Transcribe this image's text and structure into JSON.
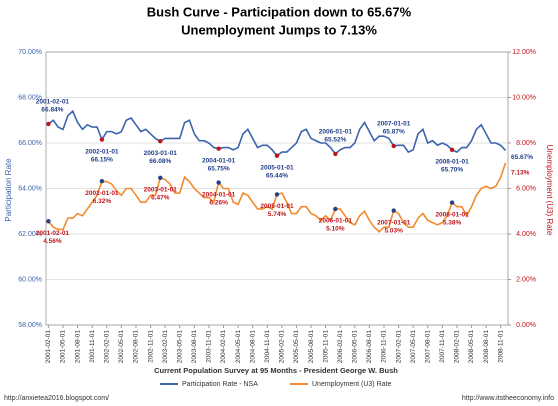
{
  "chart_data": {
    "type": "line",
    "title": "Bush Curve - Participation down to 65.67%",
    "subtitle": "Unemployment Jumps to 7.13%",
    "x_label": "Current Population Survey at 95 Months - President George W. Bush",
    "y_label": "Participation Rate",
    "y2_label": "Unemployment (U3) Rate",
    "footer_left": "http://anxietea2016.blogspot.com/",
    "footer_right": "http://www.itstheeconomy.info",
    "grid": true,
    "legend": "bottom",
    "categories": [
      "2001-02-01",
      null,
      null,
      "2001-05-01",
      null,
      null,
      "2001-08-01",
      null,
      null,
      "2001-11-01",
      null,
      null,
      "2002-02-01",
      null,
      null,
      "2002-05-01",
      null,
      null,
      "2002-08-01",
      null,
      null,
      "2002-11-01",
      null,
      null,
      "2003-02-01",
      null,
      null,
      "2003-05-01",
      null,
      null,
      "2003-08-01",
      null,
      null,
      "2003-11-01",
      null,
      null,
      "2004-02-01",
      null,
      null,
      "2004-05-01",
      null,
      null,
      "2004-08-01",
      null,
      null,
      "2004-11-01",
      null,
      null,
      "2005-02-01",
      null,
      null,
      "2005-05-01",
      null,
      null,
      "2005-08-01",
      null,
      null,
      "2005-11-01",
      null,
      null,
      "2006-02-01",
      null,
      null,
      "2006-05-01",
      null,
      null,
      "2006-08-01",
      null,
      null,
      "2006-11-01",
      null,
      null,
      "2007-02-01",
      null,
      null,
      "2007-05-01",
      null,
      null,
      "2007-08-01",
      null,
      null,
      "2007-11-01",
      null,
      null,
      "2008-02-01",
      null,
      null,
      "2008-05-01",
      null,
      null,
      "2008-08-01",
      null,
      null,
      "2008-11-01",
      null
    ],
    "ylim": [
      58,
      70
    ],
    "yticks": [
      {
        "value": 58,
        "label": "58.00%"
      },
      {
        "value": 60,
        "label": "60.00%"
      },
      {
        "value": 62,
        "label": "62.00%"
      },
      {
        "value": 64,
        "label": "64.00%"
      },
      {
        "value": 66,
        "label": "66.00%"
      },
      {
        "value": 68,
        "label": "68.00%"
      },
      {
        "value": 70,
        "label": "70.00%"
      }
    ],
    "y2lim": [
      0,
      12
    ],
    "y2ticks": [
      {
        "value": 0,
        "label": "0.00%"
      },
      {
        "value": 2,
        "label": "2.00%"
      },
      {
        "value": 4,
        "label": "4.00%"
      },
      {
        "value": 6,
        "label": "6.00%"
      },
      {
        "value": 8,
        "label": "8.00%"
      },
      {
        "value": 10,
        "label": "10.00%"
      },
      {
        "value": 12,
        "label": "12.00%"
      }
    ],
    "series": [
      {
        "name": "Participation Rate - NSA",
        "color": "#3c64ad",
        "marker_color": "#c0141c",
        "values": [
          66.84,
          67.0,
          66.7,
          66.6,
          67.2,
          67.4,
          66.9,
          66.6,
          66.8,
          66.7,
          66.7,
          66.15,
          66.5,
          66.5,
          66.4,
          66.5,
          67.0,
          67.1,
          66.8,
          66.5,
          66.6,
          66.4,
          66.2,
          66.08,
          66.2,
          66.2,
          66.2,
          66.2,
          66.9,
          67.0,
          66.4,
          66.1,
          66.1,
          66.0,
          65.8,
          65.75,
          65.8,
          65.8,
          65.7,
          65.8,
          66.4,
          66.6,
          66.2,
          65.8,
          65.9,
          65.9,
          65.7,
          65.44,
          65.6,
          65.6,
          65.8,
          66.0,
          66.5,
          66.6,
          66.2,
          66.1,
          66.0,
          66.0,
          65.8,
          65.52,
          65.7,
          65.8,
          65.8,
          66.0,
          66.6,
          66.9,
          66.5,
          66.1,
          66.3,
          66.3,
          66.2,
          65.87,
          65.9,
          65.9,
          65.6,
          65.7,
          66.4,
          66.6,
          66.0,
          66.1,
          65.9,
          66.0,
          65.9,
          65.7,
          65.6,
          65.8,
          65.8,
          66.1,
          66.6,
          66.8,
          66.4,
          66.0,
          66.0,
          65.9,
          65.67
        ],
        "annotations": [
          {
            "date": "2001-02-01",
            "label": "66.84%"
          },
          {
            "date": "2002-01-01",
            "label": "66.15%"
          },
          {
            "date": "2003-01-01",
            "label": "66.08%"
          },
          {
            "date": "2004-01-01",
            "label": "65.75%"
          },
          {
            "date": "2005-01-01",
            "label": "65.44%"
          },
          {
            "date": "2006-01-01",
            "label": "65.52%"
          },
          {
            "date": "2007-01-01",
            "label": "65.87%"
          },
          {
            "date": "2008-01-01",
            "label": "65.70%"
          }
        ],
        "end_label": "65.67%"
      },
      {
        "name": "Unemployment (U3) Rate",
        "color": "#f28a2e",
        "marker_color": "#24408a",
        "axis": "y2",
        "values": [
          4.56,
          4.3,
          4.2,
          4.2,
          4.7,
          4.7,
          4.9,
          4.8,
          5.1,
          5.4,
          5.7,
          6.32,
          6.3,
          6.2,
          5.9,
          5.7,
          6.0,
          6.0,
          5.7,
          5.4,
          5.4,
          5.7,
          5.7,
          6.47,
          6.4,
          6.2,
          5.8,
          5.8,
          6.5,
          6.3,
          6.0,
          5.8,
          5.6,
          5.6,
          5.4,
          6.26,
          6.0,
          6.0,
          5.4,
          5.3,
          5.8,
          5.7,
          5.4,
          5.1,
          5.1,
          5.2,
          5.1,
          5.74,
          5.8,
          5.4,
          4.9,
          4.9,
          5.2,
          5.2,
          4.9,
          4.8,
          4.6,
          4.8,
          4.6,
          5.1,
          5.1,
          4.8,
          4.5,
          4.4,
          4.8,
          5.0,
          4.6,
          4.3,
          4.1,
          4.3,
          4.3,
          5.03,
          4.9,
          4.5,
          4.3,
          4.3,
          4.7,
          4.9,
          4.6,
          4.5,
          4.4,
          4.5,
          4.8,
          5.38,
          5.2,
          5.2,
          4.8,
          5.2,
          5.7,
          6.0,
          6.1,
          6.0,
          6.1,
          6.5,
          7.13
        ],
        "annotations": [
          {
            "date": "2001-02-01",
            "label": "4.56%"
          },
          {
            "date": "2002-01-01",
            "label": "6.32%"
          },
          {
            "date": "2003-01-01",
            "label": "6.47%"
          },
          {
            "date": "2004-01-01",
            "label": "6.26%"
          },
          {
            "date": "2005-01-01",
            "label": "5.74%"
          },
          {
            "date": "2006-01-01",
            "label": "5.10%"
          },
          {
            "date": "2007-01-01",
            "label": "5.03%"
          },
          {
            "date": "2008-01-01",
            "label": "5.38%"
          }
        ],
        "end_label": "7.13%"
      }
    ]
  }
}
